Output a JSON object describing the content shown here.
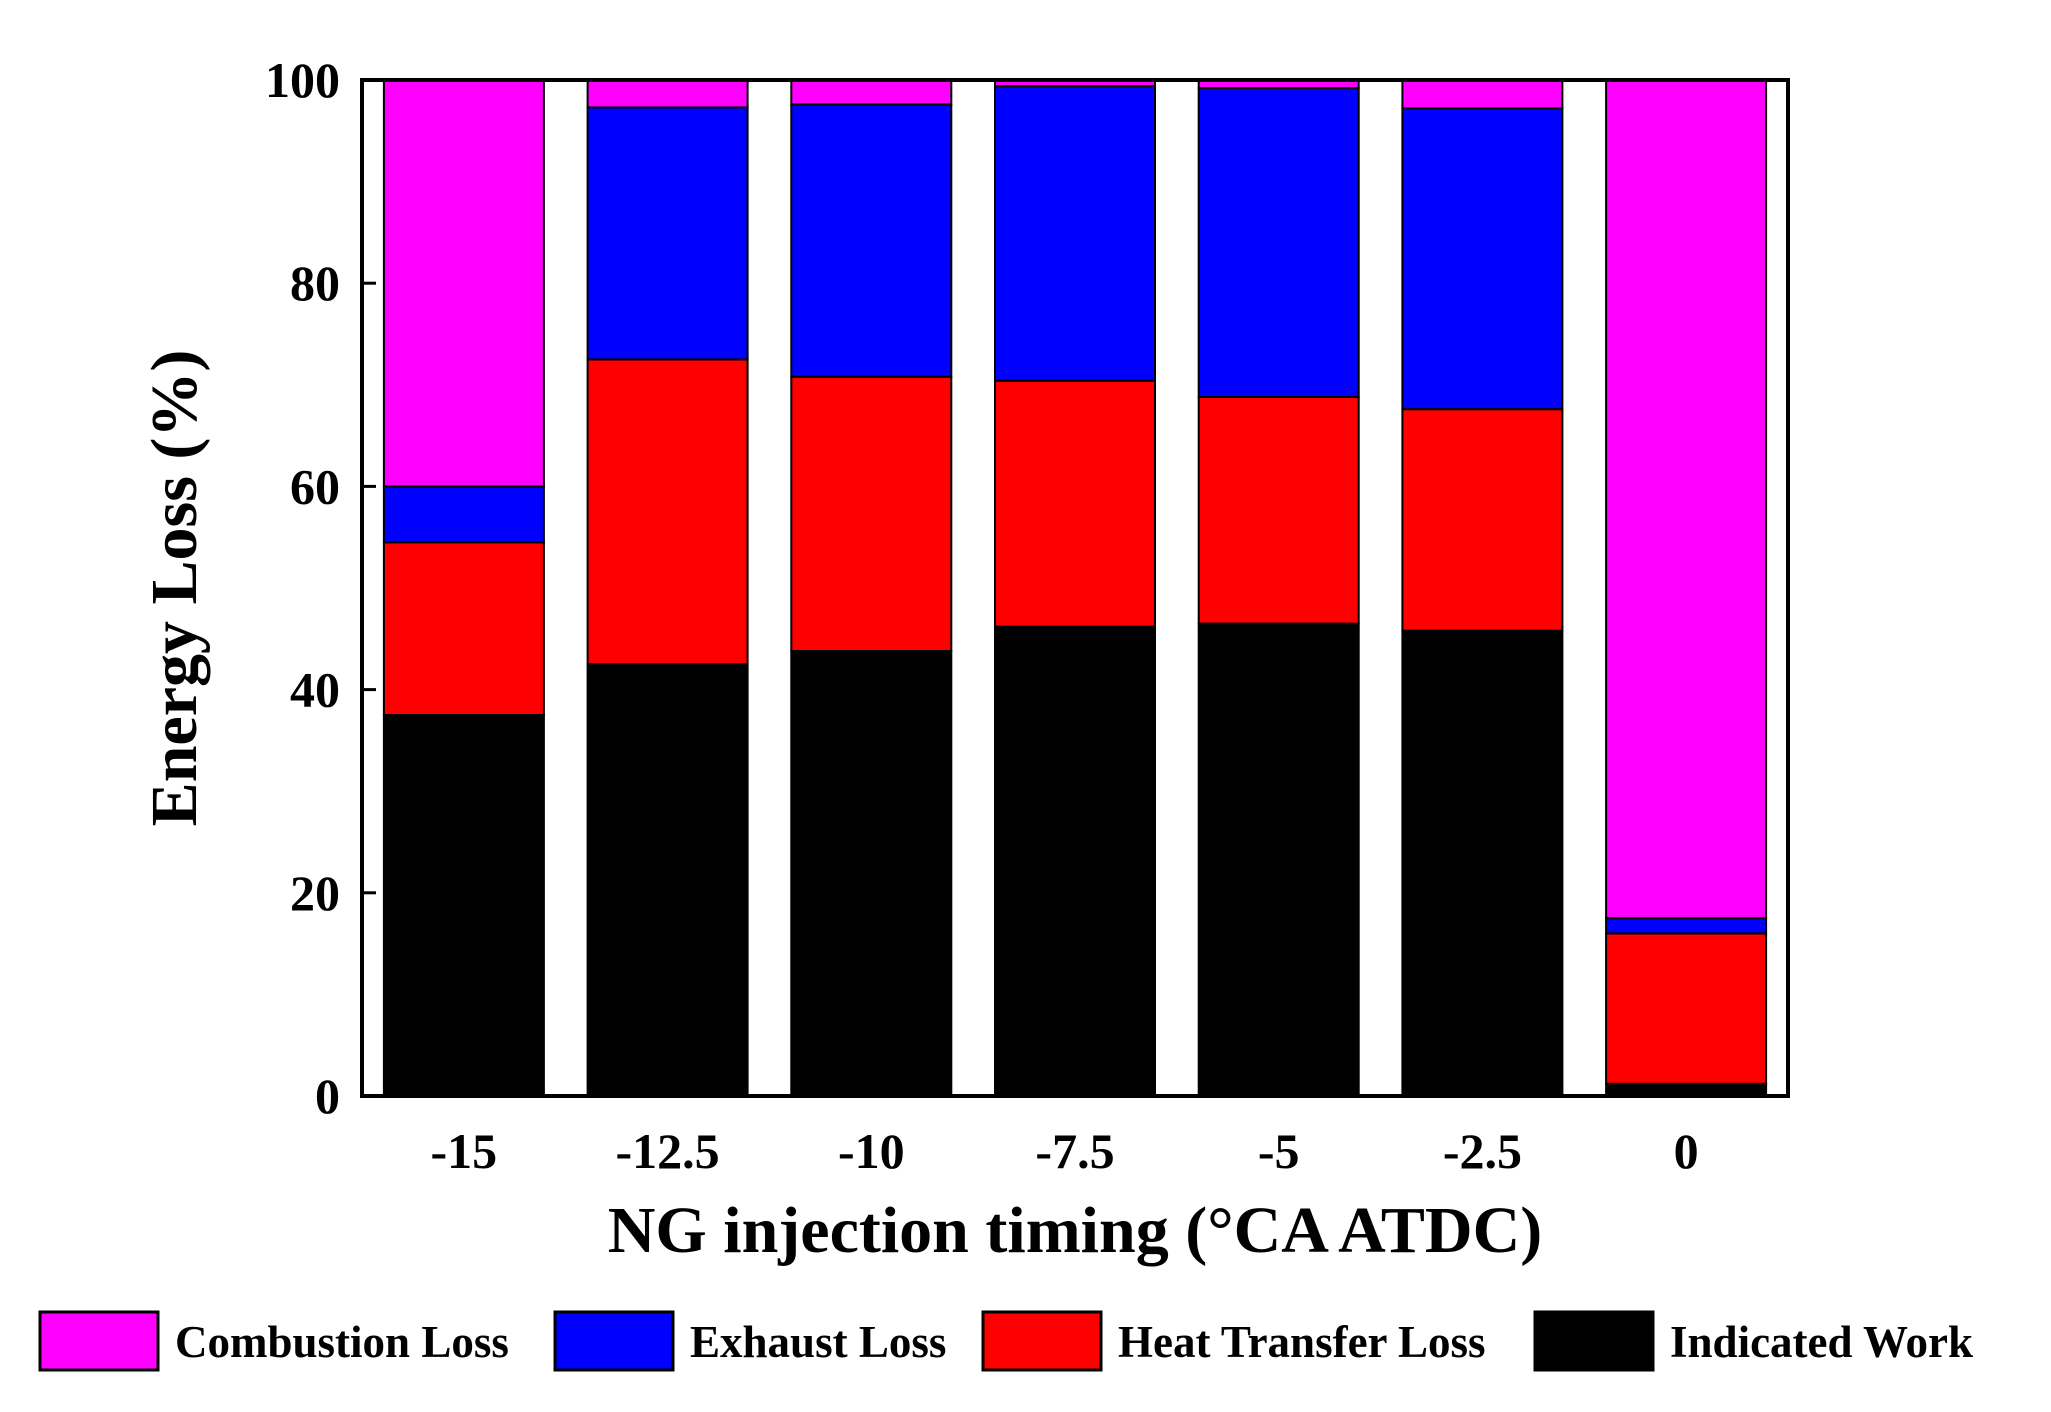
{
  "chart_data": {
    "type": "bar",
    "stacked": true,
    "title": "",
    "xlabel": "NG injection timing (°CA  ATDC)",
    "ylabel": "Energy Loss (%)",
    "ylim": [
      0,
      100
    ],
    "yticks": [
      "0",
      "20",
      "40",
      "60",
      "80",
      "100"
    ],
    "categories": [
      "-15",
      "-12.5",
      "-10",
      "-7.5",
      "-5",
      "-2.5",
      "0"
    ],
    "series": [
      {
        "name": "Indicated Work",
        "color": "#000000",
        "values": [
          37.5,
          42.5,
          43.8,
          46.2,
          46.5,
          45.8,
          1.2
        ]
      },
      {
        "name": "Heat Transfer Loss",
        "color": "#ff0000",
        "values": [
          17.0,
          30.0,
          27.0,
          24.2,
          22.3,
          21.8,
          14.8
        ]
      },
      {
        "name": "Exhaust Loss",
        "color": "#0000ff",
        "values": [
          5.5,
          24.8,
          26.8,
          29.0,
          30.4,
          29.6,
          1.5
        ]
      },
      {
        "name": "Combustion Loss",
        "color": "#ff00ff",
        "values": [
          40.0,
          2.7,
          2.4,
          0.6,
          0.8,
          2.8,
          82.5
        ]
      }
    ],
    "legend": {
      "position": "bottom",
      "order": [
        "Combustion Loss",
        "Exhaust Loss",
        "Heat Transfer Loss",
        "Indicated Work"
      ]
    }
  }
}
